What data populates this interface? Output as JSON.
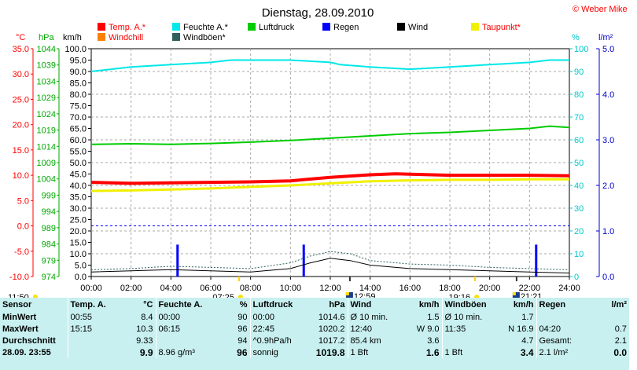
{
  "header": {
    "title": "Dienstag, 28.09.2010",
    "copyright": "© Weber Mike"
  },
  "units": {
    "temp": "°C",
    "pressure": "hPa",
    "speed": "km/h",
    "humidity": "%",
    "rain": "l/m²"
  },
  "legend": [
    {
      "label": "Temp. A.*",
      "color": "#ff0000"
    },
    {
      "label": "Feuchte A.*",
      "color": "#00e8e8"
    },
    {
      "label": "Luftdruck",
      "color": "#00cc00"
    },
    {
      "label": "Regen",
      "color": "#0000ff"
    },
    {
      "label": "Wind",
      "color": "#000000"
    },
    {
      "label": "Taupunkt*",
      "color": "#f0f000"
    },
    {
      "label": "Windchill",
      "color": "#ff8000"
    },
    {
      "label": "Windböen*",
      "color": "#2f5f5f"
    }
  ],
  "axis_labels": {
    "temp": [
      "35.0",
      "30.0",
      "25.0",
      "20.0",
      "15.0",
      "10.0",
      "5.0",
      "0.0",
      "-5.0",
      "-10.0"
    ],
    "pressure": [
      "1044",
      "1039",
      "1034",
      "1029",
      "1024",
      "1019",
      "1014",
      "1009",
      "1004",
      "999",
      "994",
      "989",
      "984",
      "979",
      "974"
    ],
    "speed": [
      "100.0",
      "95.0",
      "90.0",
      "85.0",
      "80.0",
      "75.0",
      "70.0",
      "65.0",
      "60.0",
      "55.0",
      "50.0",
      "45.0",
      "40.0",
      "35.0",
      "30.0",
      "25.0",
      "20.0",
      "15.0",
      "10.0",
      "5.0",
      "0.0"
    ],
    "humidity": [
      "100",
      "90",
      "80",
      "70",
      "60",
      "50",
      "40",
      "30",
      "20",
      "10",
      "0"
    ],
    "rain": [
      "5.0",
      "4.0",
      "3.0",
      "2.0",
      "1.0",
      "0.0"
    ],
    "time": [
      "00:00",
      "02:00",
      "04:00",
      "06:00",
      "08:00",
      "10:00",
      "12:00",
      "14:00",
      "16:00",
      "18:00",
      "20:00",
      "22:00",
      "24:00"
    ]
  },
  "sun_markers": [
    {
      "label": "11:50",
      "kind": "sun"
    },
    {
      "label": "07:25",
      "kind": "sun"
    },
    {
      "label": "12:59",
      "kind": "moon"
    },
    {
      "label": "19:16",
      "kind": "sun"
    },
    {
      "label": "21:21",
      "kind": "moon"
    }
  ],
  "chart_data": {
    "type": "line",
    "x_range": [
      "00:00",
      "24:00"
    ],
    "ylim_speed": [
      0,
      100
    ],
    "grid": true,
    "series": [
      {
        "name": "Feuchte A.*",
        "axis": "humidity",
        "color": "#00e8e8",
        "x": [
          "00:00",
          "01:00",
          "02:00",
          "04:00",
          "06:00",
          "07:00",
          "10:00",
          "12:00",
          "12:30",
          "14:00",
          "16:00",
          "18:00",
          "20:00",
          "22:00",
          "23:00",
          "24:00"
        ],
        "y": [
          90,
          91,
          92,
          93,
          94,
          95,
          95,
          94,
          93,
          92,
          91,
          92,
          93,
          94,
          95,
          95
        ]
      },
      {
        "name": "Luftdruck",
        "axis": "pressure",
        "color": "#00cc00",
        "x": [
          "00:00",
          "02:00",
          "04:00",
          "06:00",
          "08:00",
          "10:00",
          "12:00",
          "14:00",
          "16:00",
          "18:00",
          "20:00",
          "22:00",
          "23:00",
          "24:00"
        ],
        "y": [
          1014.6,
          1014.8,
          1014.6,
          1014.9,
          1015.3,
          1015.8,
          1016.5,
          1017.2,
          1017.9,
          1018.3,
          1018.9,
          1019.5,
          1020.2,
          1019.8
        ]
      },
      {
        "name": "Temp. A.*",
        "axis": "temp",
        "color": "#ff0000",
        "x": [
          "00:00",
          "02:00",
          "04:00",
          "06:00",
          "08:00",
          "10:00",
          "12:00",
          "14:00",
          "15:15",
          "16:00",
          "18:00",
          "20:00",
          "22:00",
          "24:00"
        ],
        "y": [
          8.6,
          8.4,
          8.5,
          8.6,
          8.7,
          8.9,
          9.6,
          10.1,
          10.3,
          10.2,
          10.0,
          10.0,
          10.0,
          9.9
        ]
      },
      {
        "name": "Taupunkt*",
        "axis": "temp",
        "color": "#f0f000",
        "x": [
          "00:00",
          "02:00",
          "04:00",
          "06:00",
          "08:00",
          "10:00",
          "12:00",
          "14:00",
          "16:00",
          "18:00",
          "20:00",
          "22:00",
          "24:00"
        ],
        "y": [
          6.9,
          7.0,
          7.2,
          7.4,
          7.7,
          8.0,
          8.4,
          8.8,
          9.0,
          9.1,
          9.1,
          9.2,
          9.2
        ]
      },
      {
        "name": "Wind",
        "axis": "speed",
        "color": "#000000",
        "x": [
          "00:00",
          "02:00",
          "04:00",
          "06:00",
          "08:00",
          "10:00",
          "11:00",
          "12:00",
          "13:00",
          "14:00",
          "16:00",
          "18:00",
          "20:00",
          "22:00",
          "24:00"
        ],
        "y": [
          2.0,
          2.5,
          3.0,
          2.5,
          2.0,
          3.5,
          6.0,
          8.0,
          7.0,
          5.0,
          3.5,
          3.0,
          2.5,
          2.0,
          1.5
        ]
      },
      {
        "name": "Windböen*",
        "axis": "speed",
        "color": "#2f5f5f",
        "x": [
          "00:00",
          "02:00",
          "04:00",
          "06:00",
          "08:00",
          "10:00",
          "11:00",
          "12:00",
          "13:00",
          "14:00",
          "16:00",
          "18:00",
          "20:00",
          "22:00",
          "24:00"
        ],
        "y": [
          3.0,
          3.5,
          4.5,
          4.0,
          3.5,
          6.0,
          9.0,
          11.0,
          10.0,
          7.0,
          5.5,
          5.0,
          4.0,
          3.5,
          3.0
        ]
      },
      {
        "name": "Regen",
        "axis": "rain",
        "color": "#0000ff",
        "kind": "bars",
        "x": [
          "04:20",
          "10:40",
          "22:20"
        ],
        "y": [
          0.7,
          0.7,
          0.7
        ]
      }
    ]
  },
  "stats": {
    "headers": [
      "Sensor",
      "Temp. A.",
      "°C",
      "Feuchte A.",
      "%",
      "Luftdruck",
      "hPa",
      "Wind",
      "km/h",
      "Windböen",
      "km/h",
      "Regen",
      "l/m²"
    ],
    "rows": [
      [
        "MinWert",
        "00:55",
        "8.4",
        "00:00",
        "90",
        "00:00",
        "1014.6",
        "Ø 10 min.",
        "1.5",
        "Ø 10 min.",
        "1.7",
        "",
        ""
      ],
      [
        "MaxWert",
        "15:15",
        "10.3",
        "06:15",
        "96",
        "22:45",
        "1020.2",
        "12:40",
        "W 9.0",
        "11:35",
        "N 16.9",
        "04:20",
        "0.7"
      ],
      [
        "Durchschnitt",
        "",
        "9.33",
        "",
        "94",
        "^0.9hPa/h",
        "1017.2",
        "85.4 km",
        "3.6",
        "",
        "4.7",
        "Gesamt:",
        "2.1"
      ],
      [
        "28.09.  23:55",
        "",
        "9.9",
        "8.96 g/m³",
        "96",
        "sonnig",
        "1019.8",
        "1 Bft",
        "1.6",
        "1 Bft",
        "3.4",
        "2.1 l/m²",
        "0.0"
      ]
    ]
  }
}
